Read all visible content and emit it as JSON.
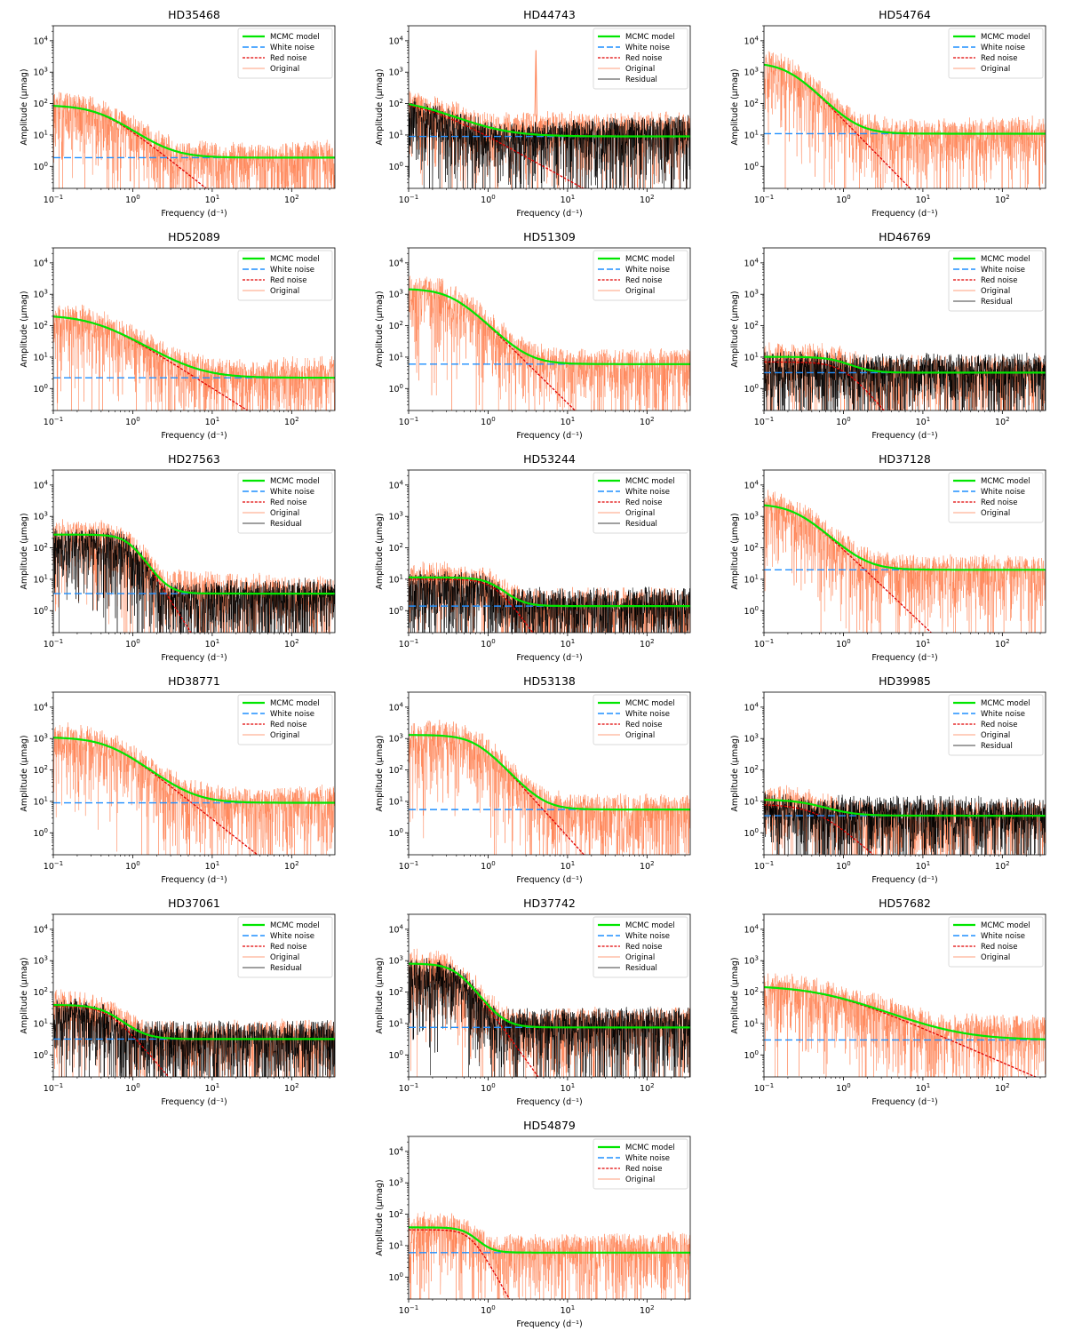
{
  "figure": {
    "xlabel": "Frequency (d⁻¹)",
    "ylabel": "Amplitude (μmag)",
    "legend": {
      "mcmc": "MCMC model",
      "white": "White noise",
      "red": "Red noise",
      "original": "Original",
      "residual": "Residual"
    },
    "colors": {
      "mcmc": "#00e600",
      "white": "#1f8fff",
      "red": "#e00000",
      "original": "#ff7f50",
      "residual": "#000000"
    }
  },
  "chart_data": [
    {
      "type": "line",
      "title": "HD35468",
      "xscale": "log",
      "yscale": "log",
      "xlim": [
        0.1,
        350
      ],
      "ylim": [
        0.2,
        30000
      ],
      "legend_loc": "upper-right",
      "grid": false,
      "series": [
        {
          "name": "MCMC model",
          "model": {
            "X0": 88,
            "tau": 0.4,
            "gamma": 2.0,
            "Cw": 1.9
          }
        },
        {
          "name": "White noise",
          "value": 1.9
        },
        {
          "name": "Red noise"
        },
        {
          "name": "Original",
          "noise_top": [
            1.8,
            5
          ]
        }
      ]
    },
    {
      "type": "line",
      "title": "HD44743",
      "xscale": "log",
      "yscale": "log",
      "xlim": [
        0.1,
        350
      ],
      "ylim": [
        0.2,
        30000
      ],
      "legend_loc": "upper-right",
      "grid": false,
      "series": [
        {
          "name": "MCMC model",
          "model": {
            "X0": 135,
            "tau": 0.15,
            "gamma": 1.4,
            "Cw": 9
          }
        },
        {
          "name": "White noise",
          "value": 9
        },
        {
          "name": "Red noise"
        },
        {
          "name": "Original",
          "noise_top": [
            40,
            40
          ]
        },
        {
          "name": "Residual",
          "noise_top": [
            8,
            35
          ]
        }
      ],
      "peak": {
        "freq": 4.0,
        "amplitude": 5000
      }
    },
    {
      "type": "line",
      "title": "HD54764",
      "xscale": "log",
      "yscale": "log",
      "xlim": [
        0.1,
        350
      ],
      "ylim": [
        0.2,
        30000
      ],
      "legend_loc": "upper-right",
      "grid": false,
      "series": [
        {
          "name": "MCMC model",
          "model": {
            "X0": 2000,
            "tau": 0.2,
            "gamma": 2.6,
            "Cw": 11
          }
        },
        {
          "name": "White noise",
          "value": 11
        },
        {
          "name": "Red noise"
        },
        {
          "name": "Original",
          "noise_top": [
            10,
            30
          ]
        }
      ]
    },
    {
      "type": "line",
      "title": "HD52089",
      "xscale": "log",
      "yscale": "log",
      "xlim": [
        0.1,
        350
      ],
      "ylim": [
        0.2,
        30000
      ],
      "legend_loc": "upper-right",
      "grid": false,
      "series": [
        {
          "name": "MCMC model",
          "model": {
            "X0": 220,
            "tau": 0.35,
            "gamma": 1.6,
            "Cw": 2.2
          }
        },
        {
          "name": "White noise",
          "value": 2.2
        },
        {
          "name": "Red noise"
        },
        {
          "name": "Original",
          "noise_top": [
            3,
            8
          ]
        }
      ]
    },
    {
      "type": "line",
      "title": "HD51309",
      "xscale": "log",
      "yscale": "log",
      "xlim": [
        0.1,
        350
      ],
      "ylim": [
        0.2,
        30000
      ],
      "legend_loc": "upper-right",
      "grid": false,
      "series": [
        {
          "name": "MCMC model",
          "model": {
            "X0": 1500,
            "tau": 0.35,
            "gamma": 2.5,
            "Cw": 6
          }
        },
        {
          "name": "White noise",
          "value": 6
        },
        {
          "name": "Red noise"
        },
        {
          "name": "Original",
          "noise_top": [
            6,
            15
          ]
        }
      ]
    },
    {
      "type": "line",
      "title": "HD46769",
      "xscale": "log",
      "yscale": "log",
      "xlim": [
        0.1,
        350
      ],
      "ylim": [
        0.2,
        30000
      ],
      "legend_loc": "upper-right",
      "grid": false,
      "series": [
        {
          "name": "MCMC model",
          "model": {
            "X0": 7,
            "tau": 1.0,
            "gamma": 3.0,
            "Cw": 3.2
          }
        },
        {
          "name": "White noise",
          "value": 3.2
        },
        {
          "name": "Red noise"
        },
        {
          "name": "Original",
          "noise_top": [
            8,
            8
          ]
        },
        {
          "name": "Residual",
          "noise_top": [
            10,
            10
          ]
        }
      ]
    },
    {
      "type": "line",
      "title": "HD27563",
      "xscale": "log",
      "yscale": "log",
      "xlim": [
        0.1,
        350
      ],
      "ylim": [
        0.2,
        30000
      ],
      "legend_loc": "upper-right",
      "grid": false,
      "series": [
        {
          "name": "MCMC model",
          "model": {
            "X0": 260,
            "tau": 0.9,
            "gamma": 4.0,
            "Cw": 3.5
          }
        },
        {
          "name": "White noise",
          "value": 3.5
        },
        {
          "name": "Red noise"
        },
        {
          "name": "Original",
          "noise_top": [
            20,
            8
          ]
        },
        {
          "name": "Residual",
          "noise_top": [
            5,
            8
          ]
        }
      ]
    },
    {
      "type": "line",
      "title": "HD53244",
      "xscale": "log",
      "yscale": "log",
      "xlim": [
        0.1,
        350
      ],
      "ylim": [
        0.2,
        30000
      ],
      "legend_loc": "upper-right",
      "grid": false,
      "series": [
        {
          "name": "MCMC model",
          "model": {
            "X0": 10,
            "tau": 1.2,
            "gamma": 3.5,
            "Cw": 1.4
          }
        },
        {
          "name": "White noise",
          "value": 1.4
        },
        {
          "name": "Red noise"
        },
        {
          "name": "Original",
          "noise_top": [
            4,
            4
          ]
        },
        {
          "name": "Residual",
          "noise_top": [
            4,
            4
          ]
        }
      ]
    },
    {
      "type": "line",
      "title": "HD37128",
      "xscale": "log",
      "yscale": "log",
      "xlim": [
        0.1,
        350
      ],
      "ylim": [
        0.2,
        30000
      ],
      "legend_loc": "upper-right",
      "grid": false,
      "series": [
        {
          "name": "MCMC model",
          "model": {
            "X0": 2500,
            "tau": 0.25,
            "gamma": 2.4,
            "Cw": 20
          }
        },
        {
          "name": "White noise",
          "value": 20
        },
        {
          "name": "Red noise"
        },
        {
          "name": "Original",
          "noise_top": [
            20,
            40
          ]
        }
      ]
    },
    {
      "type": "line",
      "title": "HD38771",
      "xscale": "log",
      "yscale": "log",
      "xlim": [
        0.1,
        350
      ],
      "ylim": [
        0.2,
        30000
      ],
      "legend_loc": "upper-right",
      "grid": false,
      "series": [
        {
          "name": "MCMC model",
          "model": {
            "X0": 1100,
            "tau": 0.5,
            "gamma": 2.0,
            "Cw": 9
          }
        },
        {
          "name": "White noise",
          "value": 9
        },
        {
          "name": "Red noise"
        },
        {
          "name": "Original",
          "noise_top": [
            10,
            25
          ]
        }
      ]
    },
    {
      "type": "line",
      "title": "HD53138",
      "xscale": "log",
      "yscale": "log",
      "xlim": [
        0.1,
        350
      ],
      "ylim": [
        0.2,
        30000
      ],
      "legend_loc": "upper-right",
      "grid": false,
      "series": [
        {
          "name": "MCMC model",
          "model": {
            "X0": 1300,
            "tau": 0.7,
            "gamma": 2.8,
            "Cw": 5.5
          }
        },
        {
          "name": "White noise",
          "value": 5.5
        },
        {
          "name": "Red noise"
        },
        {
          "name": "Original",
          "noise_top": [
            15,
            12
          ]
        }
      ]
    },
    {
      "type": "line",
      "title": "HD39985",
      "xscale": "log",
      "yscale": "log",
      "xlim": [
        0.1,
        350
      ],
      "ylim": [
        0.2,
        30000
      ],
      "legend_loc": "upper-right",
      "grid": false,
      "series": [
        {
          "name": "MCMC model",
          "model": {
            "X0": 8,
            "tau": 0.45,
            "gamma": 2.2,
            "Cw": 3.5
          }
        },
        {
          "name": "White noise",
          "value": 3.5
        },
        {
          "name": "Red noise"
        },
        {
          "name": "Original",
          "noise_top": [
            8,
            8
          ]
        },
        {
          "name": "Residual",
          "noise_top": [
            12,
            10
          ]
        }
      ]
    },
    {
      "type": "line",
      "title": "HD37061",
      "xscale": "log",
      "yscale": "log",
      "xlim": [
        0.1,
        350
      ],
      "ylim": [
        0.2,
        30000
      ],
      "legend_loc": "upper-right",
      "grid": false,
      "series": [
        {
          "name": "MCMC model",
          "model": {
            "X0": 36,
            "tau": 0.5,
            "gamma": 3.0,
            "Cw": 3.2
          }
        },
        {
          "name": "White noise",
          "value": 3.2
        },
        {
          "name": "Red noise"
        },
        {
          "name": "Original",
          "noise_top": [
            8,
            10
          ]
        },
        {
          "name": "Residual",
          "noise_top": [
            8,
            10
          ]
        }
      ]
    },
    {
      "type": "line",
      "title": "HD37742",
      "xscale": "log",
      "yscale": "log",
      "xlim": [
        0.1,
        350
      ],
      "ylim": [
        0.2,
        30000
      ],
      "legend_loc": "upper-right",
      "grid": false,
      "series": [
        {
          "name": "MCMC model",
          "model": {
            "X0": 800,
            "tau": 0.4,
            "gamma": 3.5,
            "Cw": 7.5
          }
        },
        {
          "name": "White noise",
          "value": 7.5
        },
        {
          "name": "Red noise"
        },
        {
          "name": "Original",
          "noise_top": [
            20,
            25
          ]
        },
        {
          "name": "Residual",
          "noise_top": [
            20,
            25
          ]
        }
      ]
    },
    {
      "type": "line",
      "title": "HD57682",
      "xscale": "log",
      "yscale": "log",
      "xlim": [
        0.1,
        350
      ],
      "ylim": [
        0.2,
        30000
      ],
      "legend_loc": "upper-right",
      "grid": false,
      "series": [
        {
          "name": "MCMC model",
          "model": {
            "X0": 160,
            "tau": 0.6,
            "gamma": 1.1,
            "Cw": 3
          }
        },
        {
          "name": "White noise",
          "value": 3
        },
        {
          "name": "Red noise"
        },
        {
          "name": "Original",
          "noise_top": [
            15,
            15
          ]
        }
      ]
    },
    {
      "type": "line",
      "title": "HD54879",
      "xscale": "log",
      "yscale": "log",
      "xlim": [
        0.1,
        350
      ],
      "ylim": [
        0.2,
        30000
      ],
      "legend_loc": "upper-right",
      "grid": false,
      "series": [
        {
          "name": "MCMC model",
          "model": {
            "X0": 32,
            "tau": 0.6,
            "gamma": 4.5,
            "Cw": 6
          }
        },
        {
          "name": "White noise",
          "value": 6
        },
        {
          "name": "Red noise"
        },
        {
          "name": "Original",
          "noise_top": [
            15,
            20
          ]
        }
      ]
    }
  ]
}
